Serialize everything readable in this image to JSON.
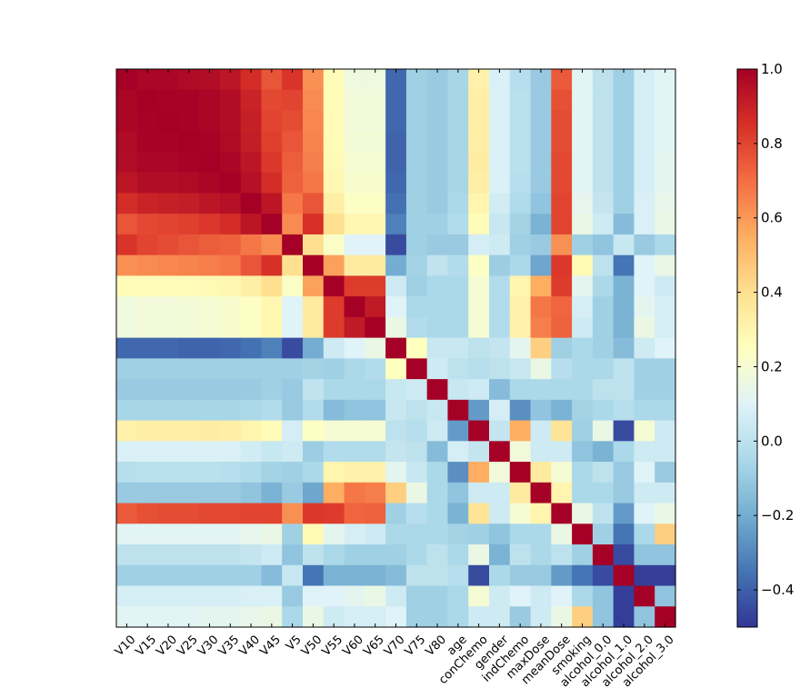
{
  "chart_data": {
    "type": "heatmap",
    "title": "",
    "variables": [
      "V10",
      "V15",
      "V20",
      "V25",
      "V30",
      "V35",
      "V40",
      "V45",
      "V5",
      "V50",
      "V55",
      "V60",
      "V65",
      "V70",
      "V75",
      "V80",
      "age",
      "conChemo",
      "gender",
      "indChemo",
      "maxDose",
      "meanDose",
      "smoking",
      "alcohol_0.0",
      "alcohol_1.0",
      "alcohol_2.0",
      "alcohol_3.0"
    ],
    "colorbar": {
      "min": -0.5,
      "max": 1.0,
      "ticks": [
        -0.4,
        -0.2,
        0.0,
        0.2,
        0.4,
        0.6,
        0.8,
        1.0
      ],
      "tick_labels": [
        "−0.4",
        "−0.2",
        "0.0",
        "0.2",
        "0.4",
        "0.6",
        "0.8",
        "1.0"
      ]
    },
    "colormap": "RdYlBu_r",
    "matrix": [
      [
        1.0,
        0.98,
        0.98,
        0.97,
        0.96,
        0.93,
        0.86,
        0.76,
        0.84,
        0.62,
        0.27,
        0.17,
        0.17,
        -0.38,
        -0.08,
        -0.1,
        -0.06,
        0.32,
        0.08,
        -0.02,
        -0.1,
        0.75,
        0.11,
        0.0,
        -0.08,
        0.07,
        0.11
      ],
      [
        0.98,
        1.0,
        0.99,
        0.99,
        0.98,
        0.96,
        0.89,
        0.79,
        0.8,
        0.63,
        0.27,
        0.18,
        0.18,
        -0.38,
        -0.08,
        -0.1,
        -0.06,
        0.33,
        0.08,
        -0.01,
        -0.1,
        0.77,
        0.11,
        0.0,
        -0.08,
        0.07,
        0.11
      ],
      [
        0.98,
        0.99,
        1.0,
        0.99,
        0.98,
        0.96,
        0.9,
        0.8,
        0.78,
        0.64,
        0.27,
        0.18,
        0.18,
        -0.38,
        -0.08,
        -0.1,
        -0.06,
        0.33,
        0.08,
        -0.01,
        -0.1,
        0.78,
        0.11,
        0.0,
        -0.08,
        0.07,
        0.11
      ],
      [
        0.97,
        0.99,
        0.99,
        1.0,
        0.99,
        0.97,
        0.91,
        0.81,
        0.76,
        0.65,
        0.27,
        0.19,
        0.19,
        -0.39,
        -0.08,
        -0.1,
        -0.06,
        0.33,
        0.08,
        -0.01,
        -0.1,
        0.78,
        0.11,
        0.0,
        -0.08,
        0.07,
        0.11
      ],
      [
        0.96,
        0.98,
        0.98,
        0.99,
        1.0,
        0.98,
        0.93,
        0.83,
        0.74,
        0.66,
        0.28,
        0.2,
        0.2,
        -0.39,
        -0.08,
        -0.1,
        -0.06,
        0.34,
        0.08,
        -0.01,
        -0.1,
        0.79,
        0.11,
        0.0,
        -0.08,
        0.07,
        0.12
      ],
      [
        0.93,
        0.96,
        0.96,
        0.97,
        0.98,
        1.0,
        0.95,
        0.86,
        0.73,
        0.68,
        0.29,
        0.21,
        0.21,
        -0.38,
        -0.08,
        -0.1,
        -0.06,
        0.33,
        0.08,
        -0.02,
        -0.1,
        0.79,
        0.11,
        0.0,
        -0.08,
        0.07,
        0.12
      ],
      [
        0.86,
        0.89,
        0.9,
        0.91,
        0.93,
        0.95,
        1.0,
        0.93,
        0.68,
        0.76,
        0.33,
        0.24,
        0.24,
        -0.36,
        -0.08,
        -0.1,
        -0.05,
        0.3,
        0.06,
        -0.04,
        -0.12,
        0.8,
        0.13,
        0.02,
        -0.08,
        0.08,
        0.14
      ],
      [
        0.76,
        0.79,
        0.8,
        0.81,
        0.83,
        0.86,
        0.93,
        1.0,
        0.63,
        0.85,
        0.4,
        0.29,
        0.29,
        -0.32,
        -0.08,
        -0.08,
        -0.03,
        0.27,
        0.03,
        -0.07,
        -0.18,
        0.8,
        0.15,
        0.05,
        -0.15,
        0.08,
        0.15
      ],
      [
        0.84,
        0.8,
        0.78,
        0.76,
        0.74,
        0.73,
        0.68,
        0.63,
        1.0,
        0.4,
        0.23,
        0.1,
        0.1,
        -0.45,
        -0.08,
        -0.1,
        -0.1,
        0.07,
        0.05,
        -0.08,
        -0.1,
        0.62,
        -0.08,
        -0.12,
        0.03,
        -0.1,
        -0.05
      ],
      [
        0.62,
        0.63,
        0.64,
        0.65,
        0.66,
        0.68,
        0.76,
        0.85,
        0.4,
        1.0,
        0.58,
        0.35,
        0.35,
        -0.2,
        -0.07,
        0.01,
        -0.03,
        0.24,
        -0.09,
        -0.05,
        -0.22,
        0.83,
        0.28,
        0.0,
        -0.35,
        0.1,
        0.15
      ],
      [
        0.27,
        0.27,
        0.27,
        0.27,
        0.28,
        0.29,
        0.33,
        0.4,
        0.23,
        0.58,
        1.0,
        0.82,
        0.82,
        0.05,
        -0.08,
        -0.05,
        -0.05,
        0.2,
        -0.03,
        0.3,
        0.55,
        0.82,
        0.12,
        -0.05,
        -0.18,
        0.1,
        0.05
      ],
      [
        0.17,
        0.18,
        0.18,
        0.19,
        0.2,
        0.21,
        0.24,
        0.29,
        0.1,
        0.35,
        0.82,
        1.0,
        0.92,
        0.1,
        -0.05,
        -0.05,
        -0.05,
        0.2,
        -0.03,
        0.32,
        0.68,
        0.72,
        0.07,
        -0.08,
        -0.18,
        0.12,
        0.07
      ],
      [
        0.17,
        0.18,
        0.18,
        0.19,
        0.2,
        0.21,
        0.24,
        0.29,
        0.1,
        0.35,
        0.82,
        0.92,
        1.0,
        0.15,
        -0.03,
        -0.05,
        -0.05,
        0.2,
        -0.03,
        0.32,
        0.66,
        0.73,
        0.05,
        -0.08,
        -0.18,
        0.15,
        0.07
      ],
      [
        -0.38,
        -0.38,
        -0.38,
        -0.39,
        -0.39,
        -0.38,
        -0.36,
        -0.32,
        -0.45,
        -0.2,
        0.05,
        0.1,
        0.15,
        1.0,
        0.25,
        0.03,
        0.03,
        0.0,
        0.02,
        0.12,
        0.45,
        -0.08,
        -0.05,
        -0.08,
        -0.15,
        0.05,
        0.1
      ],
      [
        -0.08,
        -0.08,
        -0.08,
        -0.08,
        -0.08,
        -0.08,
        -0.08,
        -0.08,
        -0.08,
        -0.07,
        -0.08,
        -0.05,
        -0.03,
        0.25,
        1.0,
        0.05,
        0.0,
        -0.02,
        0.0,
        0.03,
        0.15,
        -0.02,
        -0.05,
        -0.05,
        0.0,
        -0.08,
        -0.08
      ],
      [
        -0.1,
        -0.1,
        -0.1,
        -0.1,
        -0.1,
        -0.1,
        -0.1,
        -0.08,
        -0.1,
        0.01,
        -0.05,
        -0.05,
        -0.05,
        0.03,
        0.05,
        1.0,
        0.03,
        0.05,
        -0.15,
        -0.05,
        -0.05,
        -0.05,
        -0.05,
        0.0,
        0.0,
        -0.08,
        -0.08
      ],
      [
        -0.06,
        -0.06,
        -0.06,
        -0.06,
        -0.06,
        -0.06,
        -0.05,
        -0.03,
        -0.1,
        -0.03,
        -0.15,
        -0.12,
        -0.12,
        0.03,
        0.0,
        0.03,
        1.0,
        -0.25,
        0.07,
        -0.28,
        -0.12,
        -0.18,
        -0.07,
        -0.05,
        -0.02,
        -0.05,
        -0.05
      ],
      [
        0.32,
        0.33,
        0.33,
        0.33,
        0.34,
        0.33,
        0.3,
        0.27,
        0.07,
        0.24,
        0.2,
        0.2,
        0.2,
        0.0,
        -0.02,
        0.05,
        -0.25,
        1.0,
        0.02,
        0.55,
        0.05,
        0.38,
        -0.08,
        0.15,
        -0.45,
        0.2,
        0.05
      ],
      [
        0.08,
        0.08,
        0.08,
        0.08,
        0.08,
        0.08,
        0.06,
        0.03,
        0.05,
        -0.09,
        -0.03,
        -0.03,
        -0.03,
        0.02,
        0.0,
        -0.15,
        0.07,
        0.02,
        1.0,
        0.18,
        0.05,
        0.05,
        -0.12,
        -0.18,
        -0.05,
        0.05,
        0.05
      ],
      [
        -0.02,
        -0.01,
        -0.01,
        -0.01,
        -0.01,
        -0.02,
        -0.04,
        -0.07,
        -0.08,
        -0.05,
        0.3,
        0.32,
        0.32,
        0.12,
        0.03,
        -0.05,
        -0.28,
        0.55,
        0.18,
        1.0,
        0.35,
        0.2,
        -0.05,
        0.0,
        -0.1,
        0.1,
        -0.1
      ],
      [
        -0.1,
        -0.1,
        -0.1,
        -0.1,
        -0.1,
        -0.1,
        -0.12,
        -0.18,
        -0.1,
        -0.22,
        0.55,
        0.68,
        0.66,
        0.45,
        0.15,
        -0.05,
        -0.12,
        0.05,
        0.05,
        0.35,
        1.0,
        0.3,
        -0.05,
        -0.05,
        -0.1,
        0.05,
        0.05
      ],
      [
        0.75,
        0.77,
        0.78,
        0.78,
        0.79,
        0.79,
        0.8,
        0.8,
        0.62,
        0.83,
        0.82,
        0.72,
        0.73,
        -0.08,
        -0.02,
        -0.05,
        -0.18,
        0.38,
        0.05,
        0.2,
        0.3,
        1.0,
        0.15,
        0.0,
        -0.25,
        0.1,
        0.15
      ],
      [
        0.11,
        0.11,
        0.11,
        0.11,
        0.11,
        0.11,
        0.13,
        0.15,
        -0.08,
        0.28,
        0.12,
        0.07,
        0.05,
        -0.05,
        -0.05,
        -0.05,
        -0.07,
        -0.08,
        -0.12,
        -0.05,
        -0.05,
        0.15,
        1.0,
        -0.08,
        -0.35,
        -0.05,
        0.45
      ],
      [
        0.0,
        0.0,
        0.0,
        0.0,
        0.0,
        0.0,
        0.02,
        0.05,
        -0.12,
        0.0,
        -0.05,
        -0.08,
        -0.08,
        -0.08,
        -0.05,
        0.0,
        -0.05,
        0.15,
        -0.18,
        0.0,
        -0.05,
        0.0,
        -0.08,
        1.0,
        -0.45,
        -0.12,
        -0.12
      ],
      [
        -0.08,
        -0.08,
        -0.08,
        -0.08,
        -0.08,
        -0.08,
        -0.08,
        -0.15,
        0.03,
        -0.35,
        -0.18,
        -0.18,
        -0.18,
        -0.15,
        0.0,
        0.0,
        -0.02,
        -0.45,
        -0.05,
        -0.1,
        -0.1,
        -0.25,
        -0.35,
        -0.45,
        1.0,
        -0.48,
        -0.48
      ],
      [
        0.07,
        0.07,
        0.07,
        0.07,
        0.07,
        0.07,
        0.08,
        0.08,
        -0.1,
        0.1,
        0.1,
        0.12,
        0.15,
        0.05,
        -0.08,
        -0.08,
        -0.05,
        0.2,
        0.05,
        0.1,
        0.05,
        0.1,
        -0.05,
        -0.12,
        -0.48,
        1.0,
        -0.12
      ],
      [
        0.11,
        0.11,
        0.11,
        0.11,
        0.12,
        0.12,
        0.14,
        0.15,
        -0.05,
        0.15,
        0.05,
        0.07,
        0.07,
        0.1,
        -0.08,
        -0.08,
        -0.05,
        0.05,
        0.05,
        -0.1,
        0.05,
        0.15,
        0.45,
        -0.12,
        -0.48,
        -0.12,
        1.0
      ]
    ]
  }
}
